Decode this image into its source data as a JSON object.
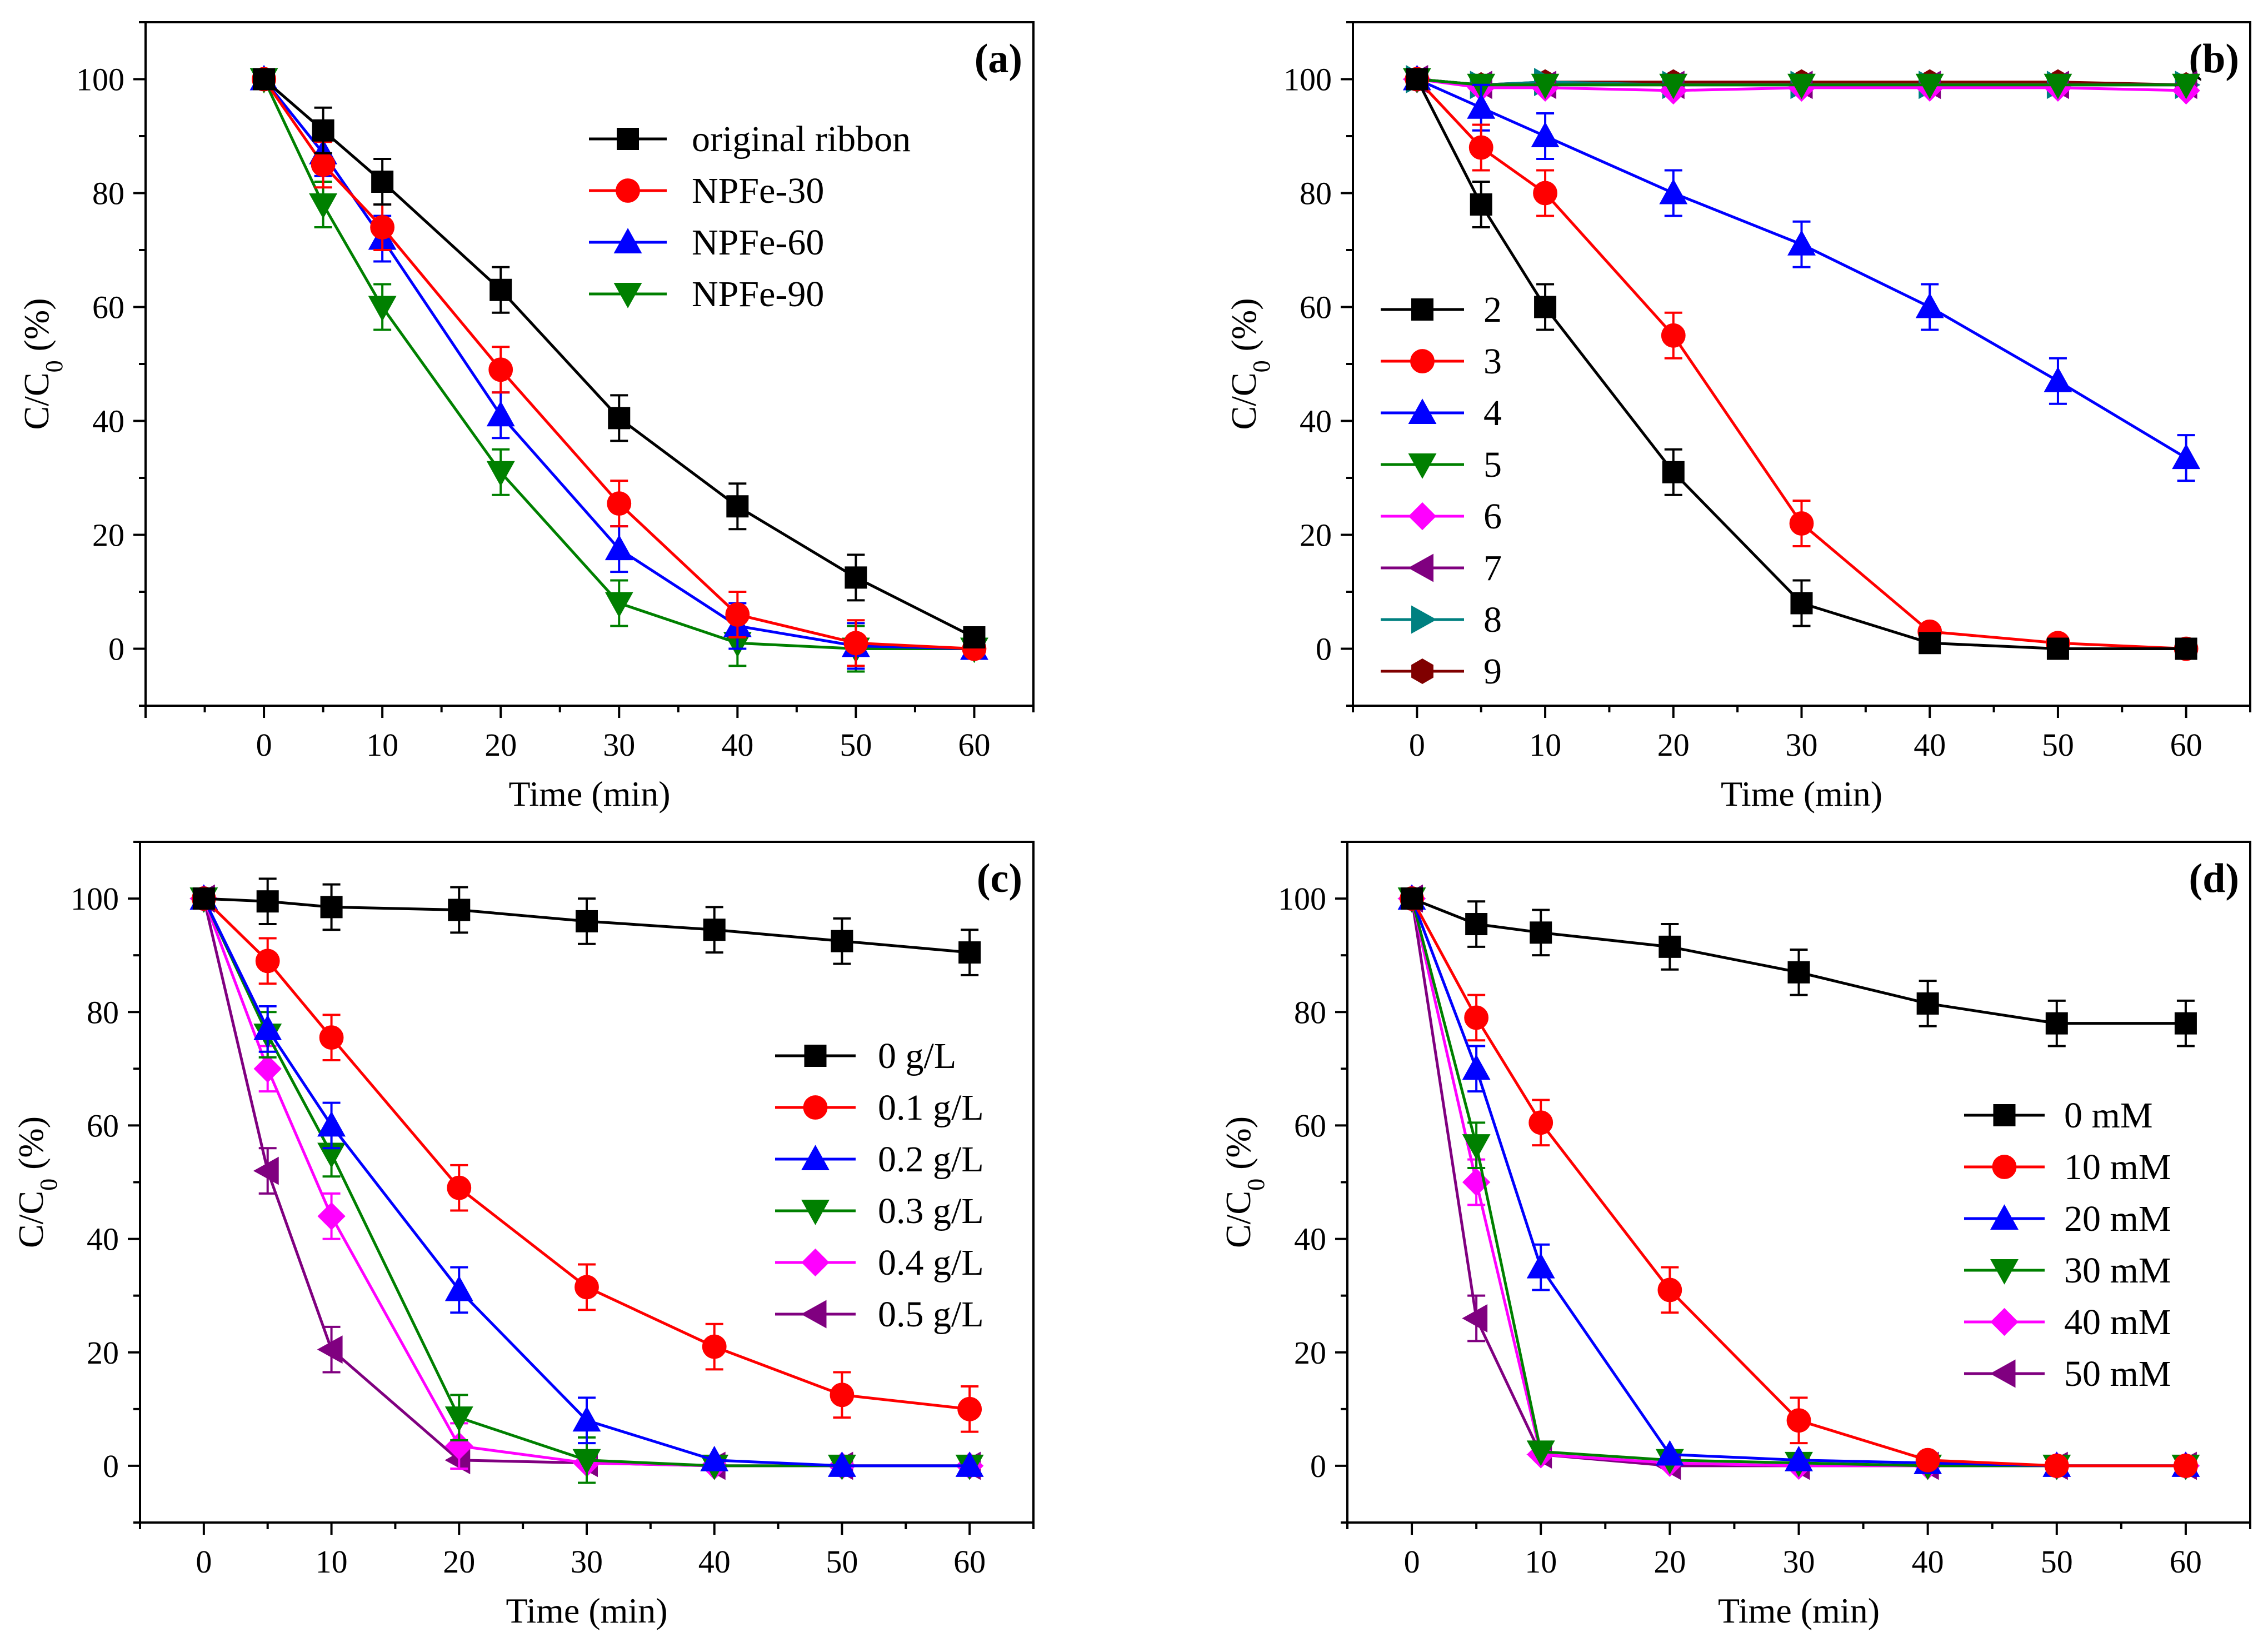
{
  "chart_data": [
    {
      "panel": "a",
      "type": "line",
      "tag": "(a)",
      "xlabel": "Time (min)",
      "ylabel": "C/C0 (%)",
      "ylabel_base": "C/C",
      "ylabel_sub": "0",
      "ylabel_tail": " (%)",
      "xlim": [
        -10,
        65
      ],
      "ylim": [
        -10,
        110
      ],
      "xticks": [
        0,
        10,
        20,
        30,
        40,
        50,
        60
      ],
      "yticks": [
        0,
        20,
        40,
        60,
        80,
        100
      ],
      "legend_position": "upper-right",
      "x": [
        0,
        5,
        10,
        20,
        30,
        40,
        50,
        60
      ],
      "series": [
        {
          "name": "original ribbon",
          "color": "#000000",
          "marker": "square",
          "values": [
            100,
            91,
            82,
            63,
            40.5,
            25,
            12.5,
            2
          ],
          "errors": [
            0,
            4,
            4,
            4,
            4,
            4,
            4,
            1
          ]
        },
        {
          "name": "NPFe-30",
          "color": "#ff0000",
          "marker": "circle",
          "values": [
            100,
            85,
            74,
            49,
            25.5,
            6,
            1,
            0
          ],
          "errors": [
            0,
            4,
            4,
            4,
            4,
            4,
            4,
            0
          ]
        },
        {
          "name": "NPFe-60",
          "color": "#0000ff",
          "marker": "triangle-up",
          "values": [
            100,
            87,
            72,
            41,
            17.5,
            4,
            0.5,
            0
          ],
          "errors": [
            0,
            4,
            4,
            4,
            4,
            4,
            4,
            0
          ]
        },
        {
          "name": "NPFe-90",
          "color": "#008000",
          "marker": "triangle-down",
          "values": [
            100,
            78,
            60,
            31,
            8,
            1,
            0,
            0
          ],
          "errors": [
            0,
            4,
            4,
            4,
            4,
            4,
            4,
            0
          ]
        }
      ]
    },
    {
      "panel": "b",
      "type": "line",
      "tag": "(b)",
      "xlabel": "Time (min)",
      "ylabel": "C/C0 (%)",
      "ylabel_base": "C/C",
      "ylabel_sub": "0",
      "ylabel_tail": " (%)",
      "xlim": [
        -5,
        65
      ],
      "ylim": [
        -10,
        110
      ],
      "xticks": [
        0,
        10,
        20,
        30,
        40,
        50,
        60
      ],
      "yticks": [
        0,
        20,
        40,
        60,
        80,
        100
      ],
      "legend_position": "center-left",
      "x": [
        0,
        5,
        10,
        20,
        30,
        40,
        50,
        60
      ],
      "series": [
        {
          "name": "2",
          "color": "#000000",
          "marker": "square",
          "values": [
            100,
            78,
            60,
            31,
            8,
            1,
            0,
            0
          ],
          "errors": [
            0,
            4,
            4,
            4,
            4,
            0,
            0,
            0
          ]
        },
        {
          "name": "3",
          "color": "#ff0000",
          "marker": "circle",
          "values": [
            100,
            88,
            80,
            55,
            22,
            3,
            1,
            0
          ],
          "errors": [
            0,
            4,
            4,
            4,
            4,
            0,
            0,
            0
          ]
        },
        {
          "name": "4",
          "color": "#0000ff",
          "marker": "triangle-up",
          "values": [
            100,
            95,
            90,
            80,
            71,
            60,
            47,
            33.5
          ],
          "errors": [
            0,
            4,
            4,
            4,
            4,
            4,
            4,
            4
          ]
        },
        {
          "name": "5",
          "color": "#008000",
          "marker": "triangle-down",
          "values": [
            100,
            99,
            99,
            99,
            99,
            99,
            99,
            99
          ],
          "errors": [
            0,
            0,
            0,
            0,
            0,
            0,
            0,
            0
          ]
        },
        {
          "name": "6",
          "color": "#ff00ff",
          "marker": "diamond",
          "values": [
            100,
            98.5,
            98.5,
            98,
            98.5,
            98.5,
            98.5,
            98
          ],
          "errors": [
            0,
            0,
            0,
            0,
            0,
            0,
            0,
            0
          ]
        },
        {
          "name": "7",
          "color": "#800080",
          "marker": "triangle-left",
          "values": [
            100,
            99,
            99,
            99,
            99,
            99,
            99,
            99
          ],
          "errors": [
            0,
            0,
            0,
            0,
            0,
            0,
            0,
            0
          ]
        },
        {
          "name": "8",
          "color": "#008080",
          "marker": "triangle-right",
          "values": [
            100,
            99,
            99.5,
            99,
            99,
            99,
            99,
            99
          ],
          "errors": [
            0,
            0,
            0,
            0,
            0,
            0,
            0,
            0
          ]
        },
        {
          "name": "9",
          "color": "#800000",
          "marker": "hexagon",
          "values": [
            100,
            99,
            99.5,
            99.5,
            99.5,
            99.5,
            99.5,
            99
          ],
          "errors": [
            0,
            0,
            0,
            0,
            0,
            0,
            0,
            0
          ]
        }
      ]
    },
    {
      "panel": "c",
      "type": "line",
      "tag": "(c)",
      "xlabel": "Time (min)",
      "ylabel": "C/C0 (%)",
      "ylabel_base": "C/C",
      "ylabel_sub": "0",
      "ylabel_tail": " (%)",
      "xlim": [
        -5,
        65
      ],
      "ylim": [
        -10,
        110
      ],
      "xticks": [
        0,
        10,
        20,
        30,
        40,
        50,
        60
      ],
      "yticks": [
        0,
        20,
        40,
        60,
        80,
        100
      ],
      "legend_position": "right",
      "x": [
        0,
        5,
        10,
        20,
        30,
        40,
        50,
        60
      ],
      "series": [
        {
          "name": "0 g/L",
          "color": "#000000",
          "marker": "square",
          "values": [
            100,
            99.5,
            98.5,
            98,
            96,
            94.5,
            92.5,
            90.5
          ],
          "errors": [
            0,
            4,
            4,
            4,
            4,
            4,
            4,
            4
          ]
        },
        {
          "name": "0.1 g/L",
          "color": "#ff0000",
          "marker": "circle",
          "values": [
            100,
            89,
            75.5,
            49,
            31.5,
            21,
            12.5,
            10
          ],
          "errors": [
            0,
            4,
            4,
            4,
            4,
            4,
            4,
            4
          ]
        },
        {
          "name": "0.2 g/L",
          "color": "#0000ff",
          "marker": "triangle-up",
          "values": [
            100,
            77,
            60,
            31,
            8,
            1,
            0,
            0
          ],
          "errors": [
            0,
            4,
            4,
            4,
            4,
            0,
            0,
            0
          ]
        },
        {
          "name": "0.3 g/L",
          "color": "#008000",
          "marker": "triangle-down",
          "values": [
            100,
            76,
            55,
            8.5,
            1,
            0,
            0,
            0
          ],
          "errors": [
            0,
            4,
            4,
            4,
            4,
            0,
            0,
            0
          ]
        },
        {
          "name": "0.4 g/L",
          "color": "#ff00ff",
          "marker": "diamond",
          "values": [
            100,
            70,
            44,
            3.5,
            0.5,
            0,
            0,
            0
          ],
          "errors": [
            0,
            4,
            4,
            4,
            0,
            0,
            0,
            0
          ]
        },
        {
          "name": "0.5 g/L",
          "color": "#800080",
          "marker": "triangle-left",
          "values": [
            100,
            52,
            20.5,
            1,
            0.5,
            0,
            0,
            0
          ],
          "errors": [
            0,
            4,
            4,
            0,
            0,
            0,
            0,
            0
          ]
        }
      ]
    },
    {
      "panel": "d",
      "type": "line",
      "tag": "(d)",
      "xlabel": "Time (min)",
      "ylabel": "C/C0 (%)",
      "ylabel_base": "C/C",
      "ylabel_sub": "0",
      "ylabel_tail": " (%)",
      "xlim": [
        -5,
        65
      ],
      "ylim": [
        -10,
        110
      ],
      "xticks": [
        0,
        10,
        20,
        30,
        40,
        50,
        60
      ],
      "yticks": [
        0,
        20,
        40,
        60,
        80,
        100
      ],
      "legend_position": "right",
      "x": [
        0,
        5,
        10,
        20,
        30,
        40,
        50,
        60
      ],
      "series": [
        {
          "name": "0 mM",
          "color": "#000000",
          "marker": "square",
          "values": [
            100,
            95.5,
            94,
            91.5,
            87,
            81.5,
            78,
            78
          ],
          "errors": [
            0,
            4,
            4,
            4,
            4,
            4,
            4,
            4
          ]
        },
        {
          "name": "10 mM",
          "color": "#ff0000",
          "marker": "circle",
          "values": [
            100,
            79,
            60.5,
            31,
            8,
            1,
            0,
            0
          ],
          "errors": [
            0,
            4,
            4,
            4,
            4,
            0,
            0,
            0
          ]
        },
        {
          "name": "20 mM",
          "color": "#0000ff",
          "marker": "triangle-up",
          "values": [
            100,
            70,
            35,
            2,
            1,
            0.5,
            0,
            0
          ],
          "errors": [
            0,
            4,
            4,
            0,
            0,
            0,
            0,
            0
          ]
        },
        {
          "name": "30 mM",
          "color": "#008000",
          "marker": "triangle-down",
          "values": [
            100,
            56.5,
            2.5,
            1,
            0.5,
            0,
            0,
            0
          ],
          "errors": [
            0,
            4,
            0,
            0,
            0,
            0,
            0,
            0
          ]
        },
        {
          "name": "40 mM",
          "color": "#ff00ff",
          "marker": "diamond",
          "values": [
            100,
            50,
            2,
            0.5,
            0,
            0,
            0,
            0
          ],
          "errors": [
            0,
            4,
            0,
            0,
            0,
            0,
            0,
            0
          ]
        },
        {
          "name": "50 mM",
          "color": "#800080",
          "marker": "triangle-left",
          "values": [
            100,
            26,
            2,
            0,
            0,
            0,
            0,
            0
          ],
          "errors": [
            0,
            4,
            0,
            0,
            0,
            0,
            0,
            0
          ]
        }
      ]
    }
  ]
}
